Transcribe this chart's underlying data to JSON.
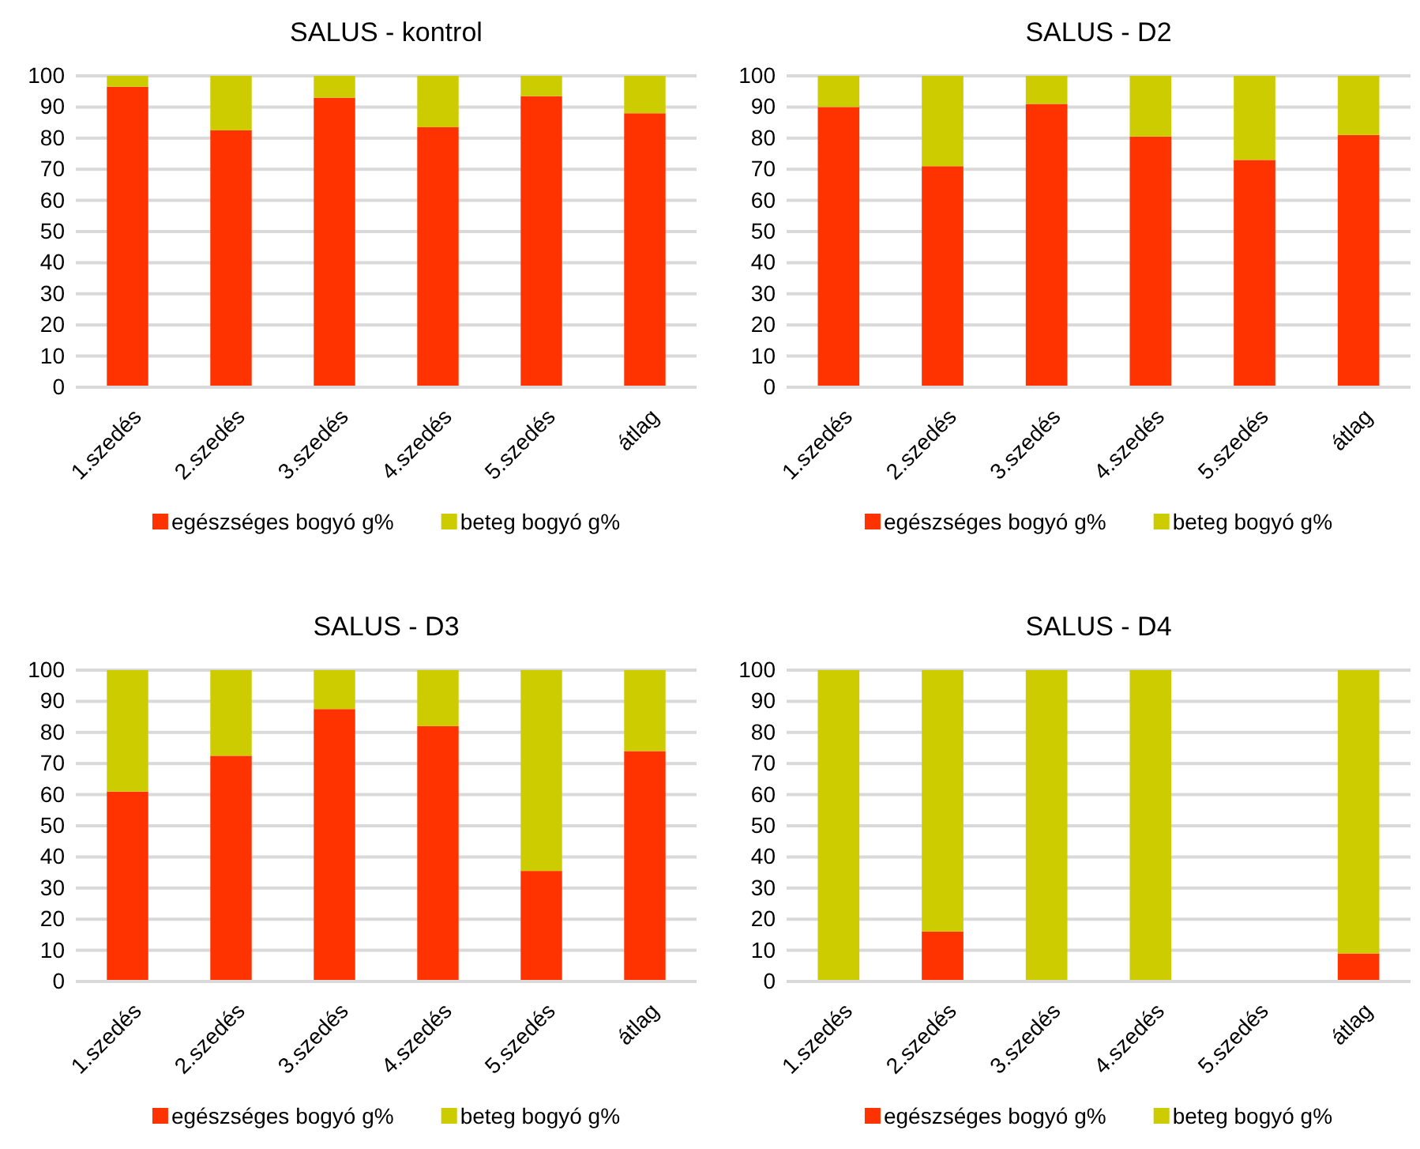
{
  "chart_data": [
    {
      "type": "bar",
      "title": "SALUS - kontrol",
      "stacked": true,
      "categories": [
        "1.szedés",
        "2.szedés",
        "3.szedés",
        "4.szedés",
        "5.szedés",
        "átlag"
      ],
      "ylim": [
        0,
        100
      ],
      "yticks": [
        0,
        10,
        20,
        30,
        40,
        50,
        60,
        70,
        80,
        90,
        100
      ],
      "grid": "y",
      "legend": "bottom",
      "series": [
        {
          "name": "egészséges bogyó g%",
          "color": "#ff3300",
          "values": [
            96.5,
            82.5,
            93,
            83.5,
            93.5,
            88
          ]
        },
        {
          "name": "beteg bogyó g%",
          "color": "#cccc00",
          "values": [
            3.5,
            17.5,
            7,
            16.5,
            6.5,
            12
          ]
        }
      ]
    },
    {
      "type": "bar",
      "title": "SALUS - D2",
      "stacked": true,
      "categories": [
        "1.szedés",
        "2.szedés",
        "3.szedés",
        "4.szedés",
        "5.szedés",
        "átlag"
      ],
      "ylim": [
        0,
        100
      ],
      "yticks": [
        0,
        10,
        20,
        30,
        40,
        50,
        60,
        70,
        80,
        90,
        100
      ],
      "grid": "y",
      "legend": "bottom",
      "series": [
        {
          "name": "egészséges bogyó g%",
          "color": "#ff3300",
          "values": [
            90,
            71,
            91,
            80.5,
            73,
            81
          ]
        },
        {
          "name": "beteg bogyó g%",
          "color": "#cccc00",
          "values": [
            10,
            29,
            9,
            19.5,
            27,
            19
          ]
        }
      ]
    },
    {
      "type": "bar",
      "title": "SALUS - D3",
      "stacked": true,
      "categories": [
        "1.szedés",
        "2.szedés",
        "3.szedés",
        "4.szedés",
        "5.szedés",
        "átlag"
      ],
      "ylim": [
        0,
        100
      ],
      "yticks": [
        0,
        10,
        20,
        30,
        40,
        50,
        60,
        70,
        80,
        90,
        100
      ],
      "grid": "y",
      "legend": "bottom",
      "series": [
        {
          "name": "egészséges bogyó g%",
          "color": "#ff3300",
          "values": [
            61,
            72.5,
            87.5,
            82,
            35.5,
            74
          ]
        },
        {
          "name": "beteg bogyó g%",
          "color": "#cccc00",
          "values": [
            39,
            27.5,
            12.5,
            18,
            64.5,
            26
          ]
        }
      ]
    },
    {
      "type": "bar",
      "title": "SALUS - D4",
      "stacked": true,
      "categories": [
        "1.szedés",
        "2.szedés",
        "3.szedés",
        "4.szedés",
        "5.szedés",
        "átlag"
      ],
      "ylim": [
        0,
        100
      ],
      "yticks": [
        0,
        10,
        20,
        30,
        40,
        50,
        60,
        70,
        80,
        90,
        100
      ],
      "grid": "y",
      "legend": "bottom",
      "series": [
        {
          "name": "egészséges bogyó g%",
          "color": "#ff3300",
          "values": [
            0,
            16,
            0,
            0,
            null,
            9
          ]
        },
        {
          "name": "beteg bogyó g%",
          "color": "#cccc00",
          "values": [
            100,
            84,
            100,
            100,
            null,
            91
          ]
        }
      ]
    }
  ]
}
